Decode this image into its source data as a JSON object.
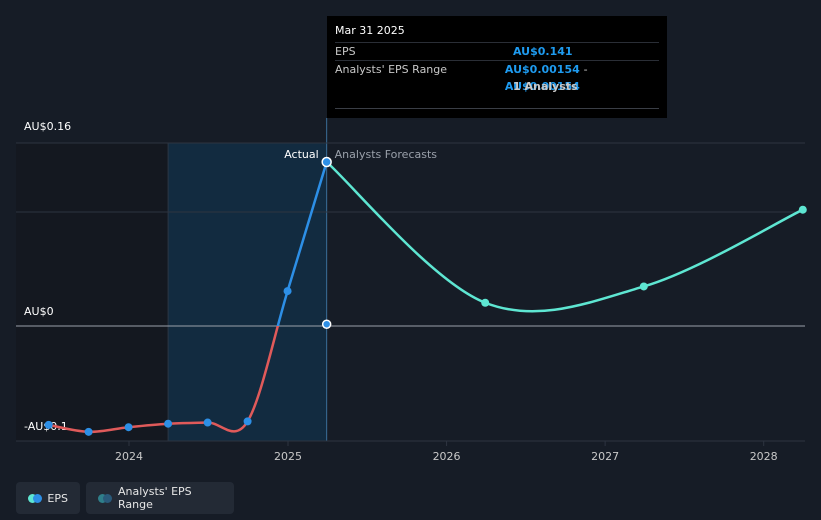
{
  "tooltip": {
    "date": "Mar 31 2025",
    "eps_label": "EPS",
    "eps_value": "AU$0.141",
    "range_label": "Analysts' EPS Range",
    "range_low": "AU$0.00154",
    "range_sep": "-",
    "range_high": "AU$0.00154",
    "analysts": "1 Analysts"
  },
  "legend": {
    "eps_label": "EPS",
    "range_label": "Analysts' EPS Range"
  },
  "colors": {
    "background": "#161c26",
    "actual_negative": "#e05a5a",
    "actual_positive": "#2d8fe6",
    "forecast": "#5ee6d2",
    "highlight_band": "#12304a"
  },
  "chart_data": {
    "type": "line",
    "y_tick_labels": [
      "AU$0.16",
      "AU$0",
      "-AU$0.1"
    ],
    "x_tick_labels": [
      "2024",
      "2025",
      "2026",
      "2027",
      "2028"
    ],
    "region_labels": {
      "actual": "Actual",
      "forecast": "Analysts Forecasts"
    },
    "ylim": [
      -0.1,
      0.16
    ],
    "series": [
      {
        "name": "EPS",
        "kind": "actual",
        "points": [
          {
            "x": "2023-06-30",
            "y": -0.085
          },
          {
            "x": "2023-09-30",
            "y": -0.091
          },
          {
            "x": "2023-12-31",
            "y": -0.087
          },
          {
            "x": "2024-03-31",
            "y": -0.084
          },
          {
            "x": "2024-06-30",
            "y": -0.083
          },
          {
            "x": "2024-09-30",
            "y": -0.082
          },
          {
            "x": "2024-12-31",
            "y": 0.03
          },
          {
            "x": "2025-03-31",
            "y": 0.141
          }
        ]
      },
      {
        "name": "EPS",
        "kind": "forecast",
        "points": [
          {
            "x": "2025-03-31",
            "y": 0.141
          },
          {
            "x": "2026-03-31",
            "y": 0.02
          },
          {
            "x": "2027-03-31",
            "y": 0.034
          },
          {
            "x": "2028-03-31",
            "y": 0.1
          }
        ]
      },
      {
        "name": "Analysts' EPS Range",
        "kind": "range",
        "points": [
          {
            "x": "2025-03-31",
            "y": 0.00154
          }
        ]
      }
    ]
  }
}
